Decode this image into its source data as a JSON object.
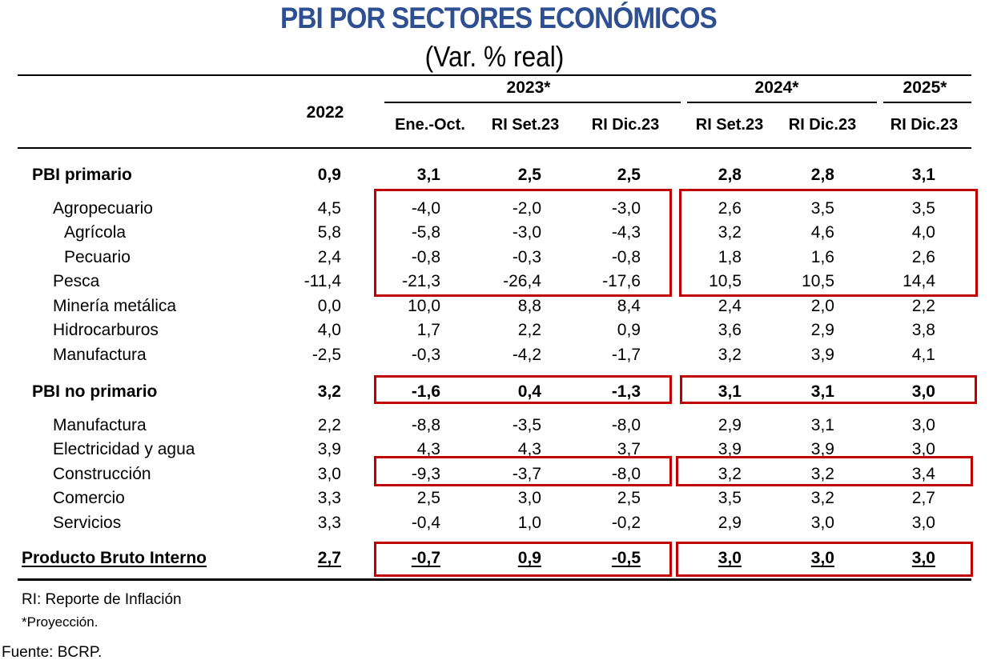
{
  "title": "PBI POR SECTORES ECONÓMICOS",
  "subtitle": "(Var. % real)",
  "header": {
    "year_2022": "2022",
    "groups": [
      "2023*",
      "2024*",
      "2025*"
    ],
    "columns": [
      "Ene.-Oct.",
      "RI Set.23",
      "RI Dic.23",
      "RI Set.23",
      "RI Dic.23",
      "RI Dic.23"
    ]
  },
  "rows": [
    {
      "label": "PBI primario",
      "values": [
        "0,9",
        "3,1",
        "2,5",
        "2,5",
        "2,8",
        "2,8",
        "3,1"
      ]
    },
    {
      "label": "Agropecuario",
      "values": [
        "4,5",
        "-4,0",
        "-2,0",
        "-3,0",
        "2,6",
        "3,5",
        "3,5"
      ]
    },
    {
      "label": "Agrícola",
      "values": [
        "5,8",
        "-5,8",
        "-3,0",
        "-4,3",
        "3,2",
        "4,6",
        "4,0"
      ]
    },
    {
      "label": "Pecuario",
      "values": [
        "2,4",
        "-0,8",
        "-0,3",
        "-0,8",
        "1,8",
        "1,6",
        "2,6"
      ]
    },
    {
      "label": "Pesca",
      "values": [
        "-11,4",
        "-21,3",
        "-26,4",
        "-17,6",
        "10,5",
        "10,5",
        "14,4"
      ]
    },
    {
      "label": "Minería metálica",
      "values": [
        "0,0",
        "10,0",
        "8,8",
        "8,4",
        "2,4",
        "2,0",
        "2,2"
      ]
    },
    {
      "label": "Hidrocarburos",
      "values": [
        "4,0",
        "1,7",
        "2,2",
        "0,9",
        "3,6",
        "2,9",
        "3,8"
      ]
    },
    {
      "label": "Manufactura",
      "values": [
        "-2,5",
        "-0,3",
        "-4,2",
        "-1,7",
        "3,2",
        "3,9",
        "4,1"
      ]
    },
    {
      "label": "PBI no primario",
      "values": [
        "3,2",
        "-1,6",
        "0,4",
        "-1,3",
        "3,1",
        "3,1",
        "3,0"
      ]
    },
    {
      "label": "Manufactura",
      "values": [
        "2,2",
        "-8,8",
        "-3,5",
        "-8,0",
        "2,9",
        "3,1",
        "3,0"
      ]
    },
    {
      "label": "Electricidad y agua",
      "values": [
        "3,9",
        "4,3",
        "4,3",
        "3,7",
        "3,9",
        "3,9",
        "3,0"
      ]
    },
    {
      "label": "Construcción",
      "values": [
        "3,0",
        "-9,3",
        "-3,7",
        "-8,0",
        "3,2",
        "3,2",
        "3,4"
      ]
    },
    {
      "label": "Comercio",
      "values": [
        "3,3",
        "2,5",
        "3,0",
        "2,5",
        "3,5",
        "3,2",
        "2,7"
      ]
    },
    {
      "label": "Servicios",
      "values": [
        "3,3",
        "-0,4",
        "1,0",
        "-0,2",
        "2,9",
        "3,0",
        "3,0"
      ]
    },
    {
      "label": "Producto Bruto Interno",
      "values": [
        "2,7",
        "-0,7",
        "0,9",
        "-0,5",
        "3,0",
        "3,0",
        "3,0"
      ]
    }
  ],
  "notes": {
    "ri": "RI: Reporte de Inflación",
    "projection": "*Proyección.",
    "source": "Fuente: BCRP."
  },
  "colors": {
    "title": "#2e4f91",
    "highlight_box": "#c00000"
  }
}
